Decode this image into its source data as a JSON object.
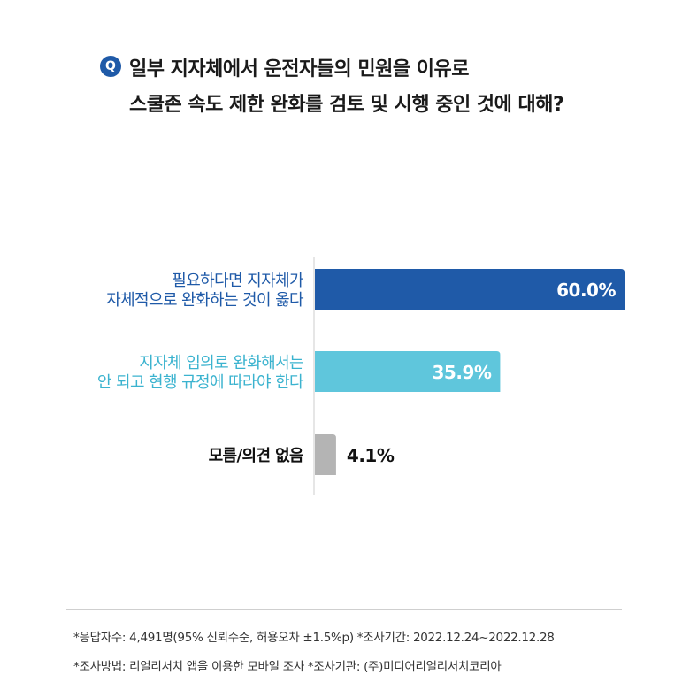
{
  "question": {
    "badge": "Q",
    "line1": "일부 지자체에서 운전자들의 민원을 이유로",
    "line2": "스쿨존 속도 제한 완화를 검토 및 시행 중인 것에 대해?"
  },
  "chart_data": {
    "type": "bar",
    "orientation": "horizontal",
    "categories": [
      [
        "필요하다면 지자체가",
        "자체적으로 완화하는 것이 옳다"
      ],
      [
        "지자체 임의로 완화해서는",
        "안 되고 현행 규정에 따라야 한다"
      ],
      [
        "모름/의견 없음"
      ]
    ],
    "values": [
      60.0,
      35.9,
      4.1
    ],
    "value_labels": [
      "60.0%",
      "35.9%",
      "4.1%"
    ],
    "colors": [
      "#1f5aa8",
      "#5fc6dc",
      "#b4b4b4"
    ],
    "label_colors": [
      "#1f5aa8",
      "#3bb3cf",
      "#111111"
    ],
    "xlim": [
      0,
      60
    ]
  },
  "footnotes": {
    "line1": "*응답자수: 4,491명(95% 신뢰수준, 허용오차 ±1.5%p)  *조사기간: 2022.12.24~2022.12.28",
    "line2": "*조사방법: 리얼리서치 앱을 이용한 모바일 조사  *조사기관: (주)미디어리얼리서치코리아"
  }
}
